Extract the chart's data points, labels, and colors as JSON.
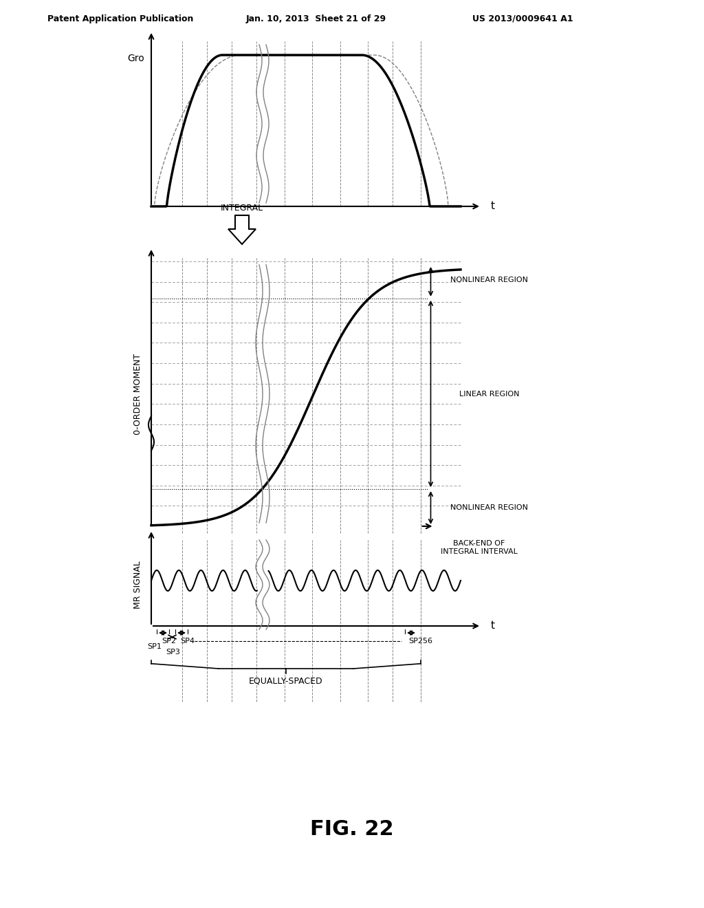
{
  "title": "FIG. 22",
  "header_left": "Patent Application Publication",
  "header_mid": "Jan. 10, 2013  Sheet 21 of 29",
  "header_right": "US 2013/0009641 A1",
  "bg_color": "#ffffff",
  "text_color": "#000000"
}
